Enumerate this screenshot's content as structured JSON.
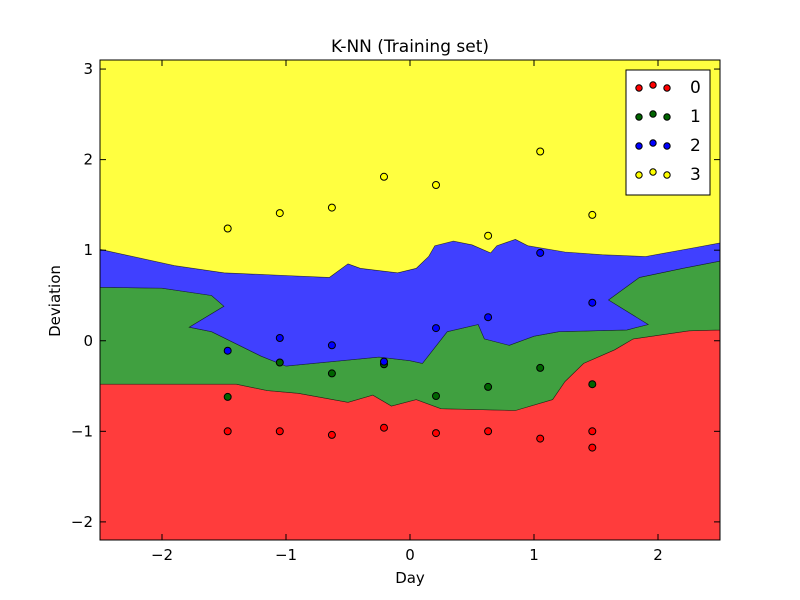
{
  "chart_data": {
    "type": "scatter",
    "title": "K-NN (Training set)",
    "xlabel": "Day",
    "ylabel": "Deviation",
    "xlim": [
      -2.5,
      2.5
    ],
    "ylim": [
      -2.2,
      3.1
    ],
    "xticks": [
      -2,
      -1,
      0,
      1,
      2
    ],
    "yticks": [
      -2,
      -1,
      0,
      1,
      2,
      3
    ],
    "xtick_labels": [
      "−2",
      "−1",
      "0",
      "1",
      "2"
    ],
    "ytick_labels": [
      "−2",
      "−1",
      "0",
      "1",
      "2",
      "3"
    ],
    "grid": false,
    "legend_position": "top-right",
    "class_colors": {
      "0": "#ff0000",
      "1": "#006400",
      "2": "#0000ff",
      "3": "#ffff00"
    },
    "region_colors": {
      "0": "#ff3c3c",
      "1": "#40a040",
      "2": "#4040ff",
      "3": "#ffff40"
    },
    "decision_regions": [
      {
        "class": "0",
        "polygon": [
          [
            -2.5,
            -2.2
          ],
          [
            2.5,
            -2.2
          ],
          [
            2.5,
            0.12
          ],
          [
            2.25,
            0.11
          ],
          [
            1.8,
            0.02
          ],
          [
            1.65,
            -0.1
          ],
          [
            1.4,
            -0.25
          ],
          [
            1.25,
            -0.45
          ],
          [
            1.15,
            -0.65
          ],
          [
            0.85,
            -0.77
          ],
          [
            0.25,
            -0.75
          ],
          [
            0.05,
            -0.65
          ],
          [
            -0.15,
            -0.72
          ],
          [
            -0.3,
            -0.6
          ],
          [
            -0.5,
            -0.68
          ],
          [
            -0.9,
            -0.58
          ],
          [
            -1.15,
            -0.55
          ],
          [
            -1.4,
            -0.48
          ],
          [
            -2.5,
            -0.48
          ]
        ]
      },
      {
        "class": "1",
        "polygon": [
          [
            -2.5,
            -0.48
          ],
          [
            -1.4,
            -0.48
          ],
          [
            -1.15,
            -0.55
          ],
          [
            -0.9,
            -0.58
          ],
          [
            -0.5,
            -0.68
          ],
          [
            -0.3,
            -0.6
          ],
          [
            -0.15,
            -0.72
          ],
          [
            0.05,
            -0.65
          ],
          [
            0.25,
            -0.75
          ],
          [
            0.85,
            -0.77
          ],
          [
            1.15,
            -0.65
          ],
          [
            1.25,
            -0.45
          ],
          [
            1.4,
            -0.25
          ],
          [
            1.65,
            -0.1
          ],
          [
            1.8,
            0.02
          ],
          [
            2.25,
            0.11
          ],
          [
            2.5,
            0.12
          ],
          [
            2.5,
            0.88
          ],
          [
            2.2,
            0.8
          ],
          [
            1.85,
            0.7
          ],
          [
            1.6,
            0.45
          ],
          [
            1.92,
            0.18
          ],
          [
            1.75,
            0.12
          ],
          [
            1.2,
            0.1
          ],
          [
            1.0,
            0.05
          ],
          [
            0.8,
            -0.05
          ],
          [
            0.6,
            0.02
          ],
          [
            0.55,
            0.18
          ],
          [
            0.3,
            0.1
          ],
          [
            0.1,
            -0.25
          ],
          [
            0.0,
            -0.22
          ],
          [
            -0.25,
            -0.18
          ],
          [
            -1.0,
            -0.28
          ],
          [
            -1.2,
            -0.17
          ],
          [
            -1.6,
            0.1
          ],
          [
            -1.78,
            0.15
          ],
          [
            -1.5,
            0.38
          ],
          [
            -1.6,
            0.5
          ],
          [
            -2.0,
            0.58
          ],
          [
            -2.5,
            0.59
          ]
        ]
      },
      {
        "class": "2",
        "polygon": [
          [
            -2.5,
            0.59
          ],
          [
            -2.0,
            0.58
          ],
          [
            -1.6,
            0.5
          ],
          [
            -1.5,
            0.38
          ],
          [
            -1.78,
            0.15
          ],
          [
            -1.6,
            0.1
          ],
          [
            -1.2,
            -0.17
          ],
          [
            -1.0,
            -0.28
          ],
          [
            -0.25,
            -0.18
          ],
          [
            0.0,
            -0.22
          ],
          [
            0.1,
            -0.25
          ],
          [
            0.3,
            0.1
          ],
          [
            0.55,
            0.18
          ],
          [
            0.6,
            0.02
          ],
          [
            0.8,
            -0.05
          ],
          [
            1.0,
            0.05
          ],
          [
            1.2,
            0.1
          ],
          [
            1.75,
            0.12
          ],
          [
            1.92,
            0.18
          ],
          [
            1.6,
            0.45
          ],
          [
            1.85,
            0.7
          ],
          [
            2.2,
            0.8
          ],
          [
            2.5,
            0.88
          ],
          [
            2.5,
            1.08
          ],
          [
            2.3,
            1.03
          ],
          [
            1.9,
            0.93
          ],
          [
            1.55,
            0.95
          ],
          [
            1.25,
            0.98
          ],
          [
            0.95,
            1.05
          ],
          [
            0.85,
            1.12
          ],
          [
            0.7,
            1.05
          ],
          [
            0.65,
            0.97
          ],
          [
            0.5,
            1.06
          ],
          [
            0.35,
            1.1
          ],
          [
            0.2,
            1.05
          ],
          [
            0.15,
            0.93
          ],
          [
            0.05,
            0.8
          ],
          [
            -0.1,
            0.75
          ],
          [
            -0.4,
            0.8
          ],
          [
            -0.5,
            0.85
          ],
          [
            -0.65,
            0.7
          ],
          [
            -1.0,
            0.72
          ],
          [
            -1.5,
            0.75
          ],
          [
            -1.9,
            0.83
          ],
          [
            -2.5,
            1.01
          ]
        ]
      },
      {
        "class": "3",
        "polygon": [
          [
            -2.5,
            3.1
          ],
          [
            2.5,
            3.1
          ],
          [
            2.5,
            1.08
          ],
          [
            2.3,
            1.03
          ],
          [
            1.9,
            0.93
          ],
          [
            1.55,
            0.95
          ],
          [
            1.25,
            0.98
          ],
          [
            0.95,
            1.05
          ],
          [
            0.85,
            1.12
          ],
          [
            0.7,
            1.05
          ],
          [
            0.65,
            0.97
          ],
          [
            0.5,
            1.06
          ],
          [
            0.35,
            1.1
          ],
          [
            0.2,
            1.05
          ],
          [
            0.15,
            0.93
          ],
          [
            0.05,
            0.8
          ],
          [
            -0.1,
            0.75
          ],
          [
            -0.4,
            0.8
          ],
          [
            -0.5,
            0.85
          ],
          [
            -0.65,
            0.7
          ],
          [
            -1.0,
            0.72
          ],
          [
            -1.5,
            0.75
          ],
          [
            -1.9,
            0.83
          ],
          [
            -2.5,
            1.01
          ]
        ]
      }
    ],
    "series": [
      {
        "name": "0",
        "x": [
          -1.47,
          -1.05,
          -0.63,
          -0.21,
          0.21,
          0.63,
          1.05,
          1.47,
          1.47
        ],
        "y": [
          -1.0,
          -1.0,
          -1.04,
          -0.96,
          -1.02,
          -1.0,
          -1.08,
          -1.0,
          -1.18
        ]
      },
      {
        "name": "1",
        "x": [
          -1.47,
          -1.05,
          -0.63,
          -0.21,
          0.21,
          0.63,
          1.05,
          1.47
        ],
        "y": [
          -0.62,
          -0.24,
          -0.36,
          -0.26,
          -0.61,
          -0.51,
          -0.3,
          -0.48
        ]
      },
      {
        "name": "2",
        "x": [
          -1.47,
          -1.05,
          -0.63,
          -0.21,
          0.21,
          0.63,
          1.05,
          1.47
        ],
        "y": [
          -0.11,
          0.03,
          -0.05,
          -0.23,
          0.14,
          0.26,
          0.97,
          0.42
        ]
      },
      {
        "name": "3",
        "x": [
          -1.47,
          -1.05,
          -0.63,
          -0.21,
          0.21,
          0.63,
          1.05,
          1.47
        ],
        "y": [
          1.24,
          1.41,
          1.47,
          1.81,
          1.72,
          1.16,
          2.09,
          1.39
        ]
      }
    ]
  }
}
